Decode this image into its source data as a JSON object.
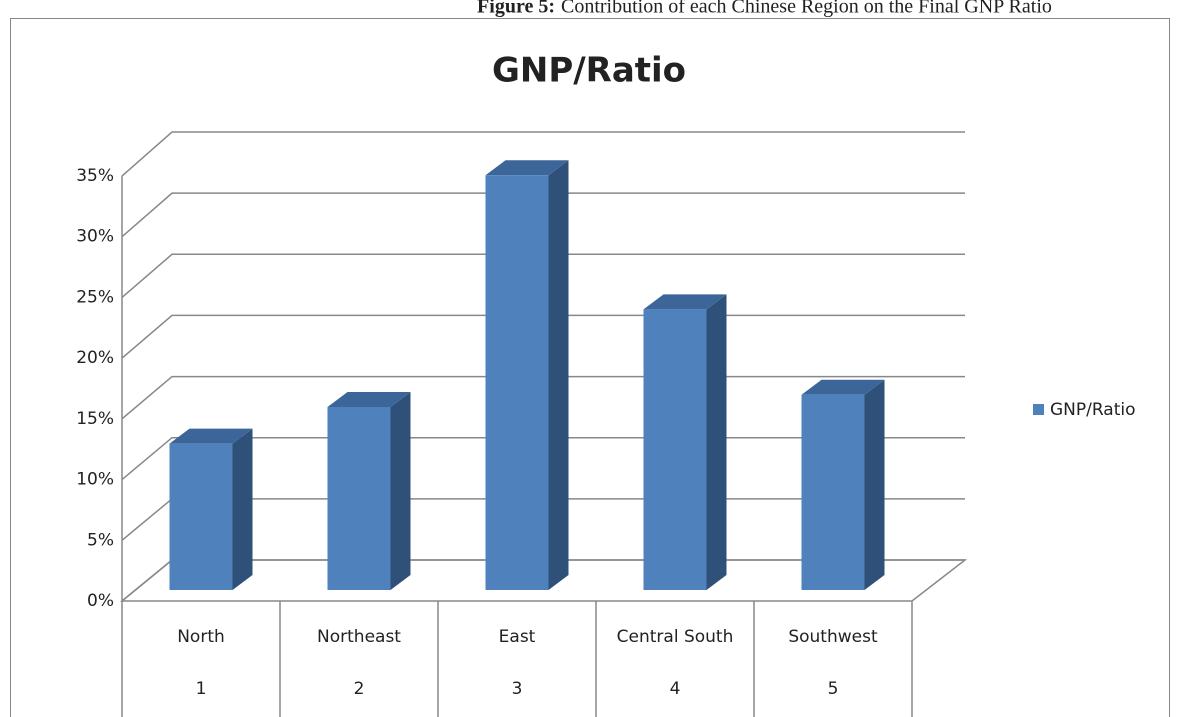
{
  "caption_label": "Figure 5:",
  "caption": "Contribution of each Chinese Region on the Final GNP Ratio",
  "chart_data": {
    "type": "bar3d",
    "title": "GNP/Ratio",
    "categories": [
      "North",
      "Northeast",
      "East",
      "Central South",
      "Southwest"
    ],
    "sub_categories": [
      "1",
      "2",
      "3",
      "4",
      "5"
    ],
    "series": [
      {
        "name": "GNP/Ratio",
        "color": "#4f81bd",
        "values": [
          12,
          15,
          34,
          23,
          16
        ]
      }
    ],
    "ylim": [
      0,
      35
    ],
    "yticks": [
      {
        "value": 0,
        "label": "0%"
      },
      {
        "value": 5,
        "label": "5%"
      },
      {
        "value": 10,
        "label": "10%"
      },
      {
        "value": 15,
        "label": "15%"
      },
      {
        "value": 20,
        "label": "20%"
      },
      {
        "value": 25,
        "label": "25%"
      },
      {
        "value": 30,
        "label": "30%"
      },
      {
        "value": 35,
        "label": "35%"
      }
    ],
    "grid": true,
    "legend": "right"
  }
}
